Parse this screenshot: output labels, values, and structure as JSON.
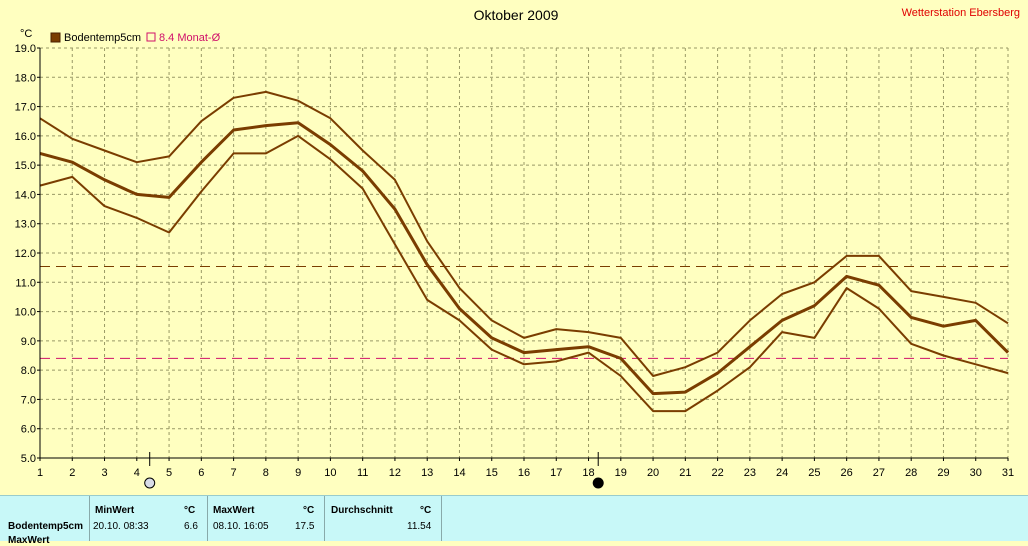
{
  "chart_data": {
    "type": "line",
    "title": "Oktober 2009",
    "station": "Wetterstation Ebersberg",
    "ylabel": "°C",
    "ylim": [
      5.0,
      19.0
    ],
    "yticks": [
      "5.0",
      "6.0",
      "7.0",
      "8.0",
      "9.0",
      "10.0",
      "11.0",
      "12.0",
      "13.0",
      "14.0",
      "15.0",
      "16.0",
      "17.0",
      "18.0",
      "19.0"
    ],
    "x": [
      1,
      2,
      3,
      4,
      5,
      6,
      7,
      8,
      9,
      10,
      11,
      12,
      13,
      14,
      15,
      16,
      17,
      18,
      19,
      20,
      21,
      22,
      23,
      24,
      25,
      26,
      27,
      28,
      29,
      30,
      31
    ],
    "grid": true,
    "legend": "top-left",
    "series": [
      {
        "name": "Bodentemp5cm",
        "role": "mean",
        "color": "#7a3d00",
        "values": [
          15.4,
          15.1,
          14.5,
          14.0,
          13.9,
          15.1,
          16.2,
          16.35,
          16.45,
          15.7,
          14.8,
          13.5,
          11.6,
          10.1,
          9.1,
          8.6,
          8.7,
          8.8,
          8.4,
          7.2,
          7.25,
          7.9,
          8.8,
          9.7,
          10.2,
          11.2,
          10.9,
          9.8,
          9.5,
          9.7,
          8.6
        ]
      },
      {
        "role": "max",
        "color": "#7a3d00",
        "values": [
          16.6,
          15.9,
          15.5,
          15.1,
          15.3,
          16.5,
          17.3,
          17.5,
          17.2,
          16.6,
          15.5,
          14.5,
          12.4,
          10.8,
          9.7,
          9.1,
          9.4,
          9.3,
          9.1,
          7.8,
          8.1,
          8.6,
          9.7,
          10.6,
          11.0,
          11.9,
          11.9,
          10.7,
          10.5,
          10.3,
          9.6
        ]
      },
      {
        "role": "min",
        "color": "#7a3d00",
        "values": [
          14.3,
          14.6,
          13.6,
          13.2,
          12.7,
          14.1,
          15.4,
          15.4,
          16.0,
          15.2,
          14.2,
          12.3,
          10.4,
          9.7,
          8.7,
          8.2,
          8.3,
          8.6,
          7.8,
          6.6,
          6.6,
          7.3,
          8.1,
          9.3,
          9.1,
          10.8,
          10.1,
          8.9,
          8.5,
          8.2,
          7.9
        ]
      }
    ],
    "reference_lines": [
      {
        "label": "8.4 Monat-Ø",
        "value": 8.4,
        "color": "#d0106a"
      },
      {
        "value": 11.54,
        "color": "#7a3d00"
      }
    ],
    "moon_markers": [
      {
        "day": 4.4,
        "phase": "full-moon"
      },
      {
        "day": 18.3,
        "phase": "new-moon"
      }
    ],
    "colors": {
      "plot_bg": "#ffffc0",
      "grid": "#999966",
      "panel_bg": "#c8f8f8"
    }
  },
  "stats": {
    "headers": {
      "min": "MinWert",
      "max": "MaxWert",
      "avg": "Durchschnitt",
      "unit": "°C"
    },
    "rows": [
      {
        "label": "Bodentemp5cm",
        "min_time": "20.10.  08:33",
        "min_val": "6.6",
        "max_time": "08.10.  16:05",
        "max_val": "17.5",
        "avg": "11.54"
      }
    ],
    "cut_off_label": "MaxWert"
  }
}
